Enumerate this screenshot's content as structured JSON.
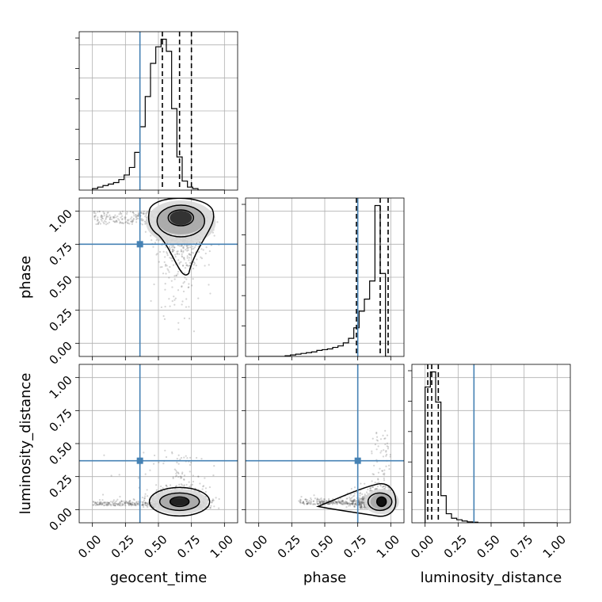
{
  "chart_data": {
    "type": "corner",
    "parameters": [
      "geocent_time",
      "phase",
      "luminosity_distance"
    ],
    "axis_labels": {
      "x": [
        "geocent_time",
        "phase",
        "luminosity_distance"
      ],
      "y": [
        "",
        "phase",
        "luminosity_distance"
      ]
    },
    "tick_values": [
      0.0,
      0.25,
      0.5,
      0.75,
      1.0
    ],
    "tick_labels": [
      "0.00",
      "0.25",
      "0.50",
      "0.75",
      "1.00"
    ],
    "axis_range": [
      -0.1,
      1.1
    ],
    "grid": true,
    "truths": {
      "geocent_time": 0.36,
      "phase": 0.75,
      "luminosity_distance": 0.37
    },
    "truth_color": "#4682b4",
    "quantiles": {
      "geocent_time": [
        0.53,
        0.66,
        0.75
      ],
      "phase": [
        0.74,
        0.92,
        0.98
      ],
      "luminosity_distance": [
        0.02,
        0.05,
        0.1
      ]
    },
    "histograms": {
      "geocent_time": {
        "range": [
          0.0,
          1.0
        ],
        "bins": 25,
        "counts": [
          0.01,
          0.02,
          0.03,
          0.04,
          0.05,
          0.07,
          0.1,
          0.15,
          0.25,
          0.42,
          0.62,
          0.84,
          0.95,
          1.0,
          0.92,
          0.54,
          0.22,
          0.06,
          0.02,
          0.01,
          0.0,
          0.0,
          0.0,
          0.0,
          0.0
        ]
      },
      "phase": {
        "range": [
          0.0,
          1.0
        ],
        "bins": 25,
        "counts": [
          0.0,
          0.0,
          0.0,
          0.0,
          0.0,
          0.005,
          0.01,
          0.015,
          0.02,
          0.025,
          0.03,
          0.04,
          0.045,
          0.05,
          0.06,
          0.07,
          0.09,
          0.12,
          0.19,
          0.3,
          0.38,
          0.5,
          1.0,
          0.55,
          0.0
        ]
      },
      "luminosity_distance": {
        "range": [
          0.0,
          1.0
        ],
        "bins": 25,
        "counts": [
          0.9,
          1.0,
          0.8,
          0.18,
          0.06,
          0.03,
          0.02,
          0.012,
          0.006,
          0.004,
          0.0,
          0.0,
          0.0,
          0.0,
          0.0,
          0.0,
          0.0,
          0.0,
          0.0,
          0.0,
          0.0,
          0.0,
          0.0,
          0.0,
          0.0
        ]
      }
    },
    "density_peaks": {
      "geocent_time_vs_phase": {
        "x": 0.67,
        "y": 0.95
      },
      "geocent_time_vs_luminosity_distance": {
        "x": 0.66,
        "y": 0.06
      },
      "phase_vs_luminosity_distance": {
        "x": 0.93,
        "y": 0.06
      }
    }
  }
}
